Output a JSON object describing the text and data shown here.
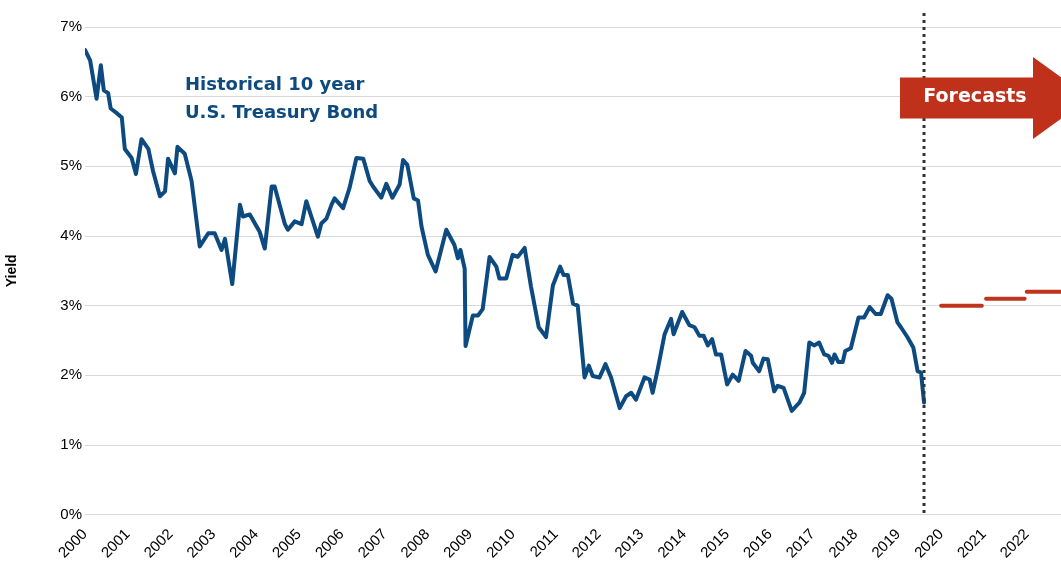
{
  "chart_data": {
    "type": "line",
    "ylabel": "Yield",
    "xlim": [
      2000,
      2022.8
    ],
    "xticks": [
      2000,
      2001,
      2002,
      2003,
      2004,
      2005,
      2006,
      2007,
      2008,
      2009,
      2010,
      2011,
      2012,
      2013,
      2014,
      2015,
      2016,
      2017,
      2018,
      2019,
      2020,
      2021,
      2022
    ],
    "ylim": [
      0,
      7
    ],
    "yticks": [
      {
        "value": 0,
        "label": "0%"
      },
      {
        "value": 1,
        "label": "1%"
      },
      {
        "value": 2,
        "label": "2%"
      },
      {
        "value": 3,
        "label": "3%"
      },
      {
        "value": 4,
        "label": "4%"
      },
      {
        "value": 5,
        "label": "5%"
      },
      {
        "value": 6,
        "label": "6%"
      },
      {
        "value": 7,
        "label": "7%"
      }
    ],
    "grid": "y",
    "legend": false,
    "marker": "none",
    "line_style": "solid",
    "series": [
      {
        "name": "Historical 10 year\nU.S. Treasury Bond",
        "color": "#0d4a80",
        "x": [
          2000.0,
          2000.12,
          2000.27,
          2000.37,
          2000.44,
          2000.54,
          2000.6,
          2000.75,
          2000.86,
          2000.93,
          2001.09,
          2001.19,
          2001.32,
          2001.48,
          2001.59,
          2001.75,
          2001.87,
          2001.94,
          2002.1,
          2002.16,
          2002.33,
          2002.49,
          2002.68,
          2002.88,
          2003.03,
          2003.19,
          2003.27,
          2003.44,
          2003.62,
          2003.69,
          2003.85,
          2004.08,
          2004.2,
          2004.36,
          2004.43,
          2004.67,
          2004.74,
          2004.9,
          2005.06,
          2005.17,
          2005.44,
          2005.52,
          2005.64,
          2005.76,
          2005.83,
          2006.03,
          2006.18,
          2006.34,
          2006.5,
          2006.65,
          2006.73,
          2006.92,
          2007.04,
          2007.18,
          2007.35,
          2007.43,
          2007.53,
          2007.68,
          2007.78,
          2007.86,
          2008.01,
          2008.19,
          2008.44,
          2008.63,
          2008.71,
          2008.77,
          2008.87,
          2008.89,
          2009.06,
          2009.18,
          2009.29,
          2009.45,
          2009.61,
          2009.68,
          2009.84,
          2009.99,
          2010.11,
          2010.27,
          2010.42,
          2010.6,
          2010.77,
          2010.93,
          2011.1,
          2011.18,
          2011.28,
          2011.4,
          2011.51,
          2011.67,
          2011.77,
          2011.86,
          2012.02,
          2012.16,
          2012.29,
          2012.49,
          2012.64,
          2012.76,
          2012.87,
          2013.07,
          2013.19,
          2013.26,
          2013.38,
          2013.54,
          2013.69,
          2013.75,
          2013.95,
          2014.12,
          2014.24,
          2014.35,
          2014.45,
          2014.55,
          2014.65,
          2014.74,
          2014.86,
          2015.0,
          2015.13,
          2015.27,
          2015.43,
          2015.56,
          2015.6,
          2015.75,
          2015.85,
          2015.95,
          2016.1,
          2016.18,
          2016.32,
          2016.51,
          2016.69,
          2016.8,
          2016.92,
          2017.04,
          2017.15,
          2017.27,
          2017.37,
          2017.45,
          2017.51,
          2017.6,
          2017.7,
          2017.76,
          2017.89,
          2018.07,
          2018.2,
          2018.33,
          2018.47,
          2018.59,
          2018.75,
          2018.84,
          2018.98,
          2019.06,
          2019.21,
          2019.35,
          2019.45,
          2019.53,
          2019.6
        ],
        "values": [
          6.67,
          6.52,
          5.97,
          6.45,
          6.09,
          6.05,
          5.83,
          5.76,
          5.7,
          5.25,
          5.12,
          4.89,
          5.39,
          5.25,
          4.93,
          4.57,
          4.64,
          5.11,
          4.9,
          5.28,
          5.18,
          4.79,
          3.85,
          4.04,
          4.04,
          3.8,
          3.96,
          3.31,
          4.45,
          4.28,
          4.31,
          4.06,
          3.82,
          4.71,
          4.71,
          4.17,
          4.09,
          4.21,
          4.17,
          4.5,
          3.99,
          4.18,
          4.25,
          4.45,
          4.54,
          4.4,
          4.69,
          5.12,
          5.11,
          4.79,
          4.71,
          4.55,
          4.75,
          4.55,
          4.74,
          5.09,
          5.02,
          4.54,
          4.51,
          4.14,
          3.73,
          3.49,
          4.09,
          3.87,
          3.68,
          3.8,
          3.53,
          2.42,
          2.86,
          2.86,
          2.95,
          3.7,
          3.56,
          3.39,
          3.39,
          3.73,
          3.7,
          3.83,
          3.27,
          2.69,
          2.55,
          3.29,
          3.56,
          3.44,
          3.44,
          3.03,
          3.0,
          1.97,
          2.14,
          1.99,
          1.97,
          2.16,
          1.97,
          1.53,
          1.7,
          1.75,
          1.65,
          1.97,
          1.94,
          1.75,
          2.09,
          2.59,
          2.81,
          2.59,
          2.91,
          2.72,
          2.69,
          2.57,
          2.57,
          2.43,
          2.52,
          2.3,
          2.3,
          1.87,
          2.01,
          1.92,
          2.35,
          2.28,
          2.18,
          2.06,
          2.24,
          2.23,
          1.77,
          1.85,
          1.82,
          1.49,
          1.61,
          1.75,
          2.47,
          2.43,
          2.47,
          2.3,
          2.28,
          2.18,
          2.3,
          2.19,
          2.19,
          2.35,
          2.39,
          2.83,
          2.83,
          2.98,
          2.88,
          2.88,
          3.15,
          3.1,
          2.76,
          2.69,
          2.55,
          2.4,
          2.06,
          2.04,
          1.61
        ]
      },
      {
        "color": "#c0331c",
        "x": [
          2020.0,
          2020.95,
          2020.98,
          2021.05,
          2021.95,
          2021.98,
          2022.0,
          2022.8
        ],
        "values": [
          3.0,
          3.0,
          null,
          3.1,
          3.1,
          null,
          3.2,
          3.2
        ]
      }
    ],
    "ref_lines": [
      {
        "axis": "x",
        "value": 2019.6,
        "color": "#333333",
        "line_style": "dotted"
      }
    ],
    "annotations": [
      "Forecasts"
    ]
  }
}
